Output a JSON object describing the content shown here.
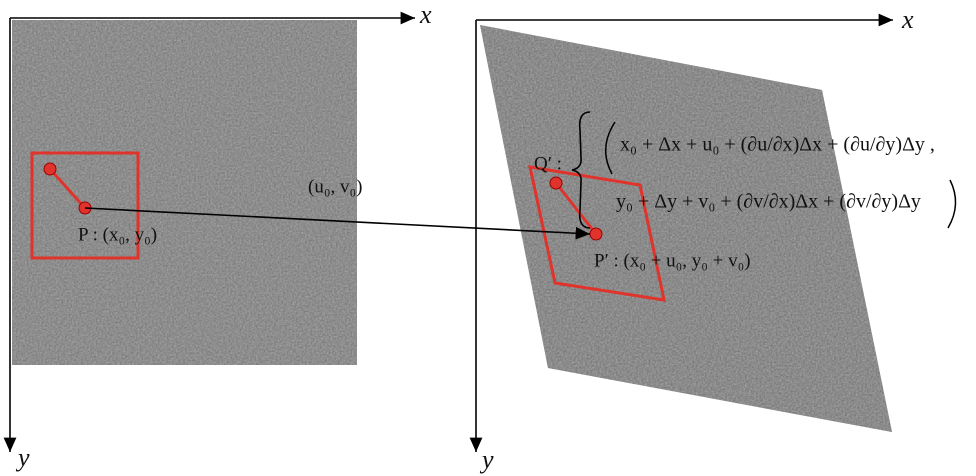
{
  "left_panel": {
    "x_axis_label": "x",
    "y_axis_label": "y",
    "point_label": "P : (x₀, y₀)",
    "displacement_label": "(u₀, v₀)"
  },
  "right_panel": {
    "x_axis_label": "x",
    "y_axis_label": "y",
    "point_q_label": "Q′ :",
    "point_p_label": "P′ : (x₀ + u₀, y₀ + v₀)",
    "formula": {
      "line1": "x₀ + Δx + u₀ + (∂u/∂x)Δx + (∂u/∂y)Δy ,",
      "line2": "y₀ + Δy + v₀ + (∂v/∂x)Δx + (∂v/∂y)Δy"
    }
  }
}
